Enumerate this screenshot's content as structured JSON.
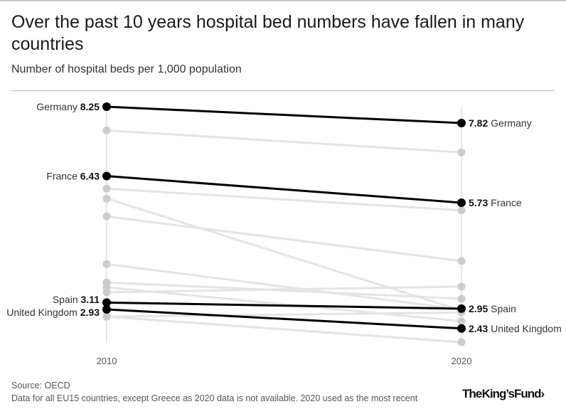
{
  "title": "Over the past 10 years hospital bed numbers have fallen in many countries",
  "subtitle": "Number of hospital beds per 1,000 population",
  "source": "Source: OECD",
  "note": "Data for all EU15 countries, except Greece as 2020 data is not available. 2020 used as the most recent",
  "logo": "The King's Fund>",
  "colors": {
    "highlight": "#000000",
    "other": "#cccccc",
    "other_line": "#e4e4e4",
    "axis": "#cccccc"
  },
  "chart_data": {
    "type": "slope",
    "x": [
      "2010",
      "2020"
    ],
    "ylim": [
      1.5,
      8.5
    ],
    "grid": false,
    "highlighted": [
      {
        "name": "Germany",
        "values": [
          8.25,
          7.82
        ]
      },
      {
        "name": "France",
        "values": [
          6.43,
          5.73
        ]
      },
      {
        "name": "Spain",
        "values": [
          3.11,
          2.95
        ]
      },
      {
        "name": "United Kingdom",
        "values": [
          2.93,
          2.43
        ]
      }
    ],
    "other_series": [
      {
        "values": [
          7.63,
          7.05
        ]
      },
      {
        "values": [
          6.1,
          5.53
        ]
      },
      {
        "values": [
          5.84,
          2.9
        ]
      },
      {
        "values": [
          5.37,
          4.2
        ]
      },
      {
        "values": [
          4.12,
          2.93
        ]
      },
      {
        "values": [
          3.64,
          3.21
        ]
      },
      {
        "values": [
          3.38,
          3.53
        ]
      },
      {
        "values": [
          3.51,
          2.62
        ]
      },
      {
        "values": [
          2.74,
          2.85
        ]
      },
      {
        "values": [
          2.74,
          2.07
        ]
      }
    ]
  }
}
